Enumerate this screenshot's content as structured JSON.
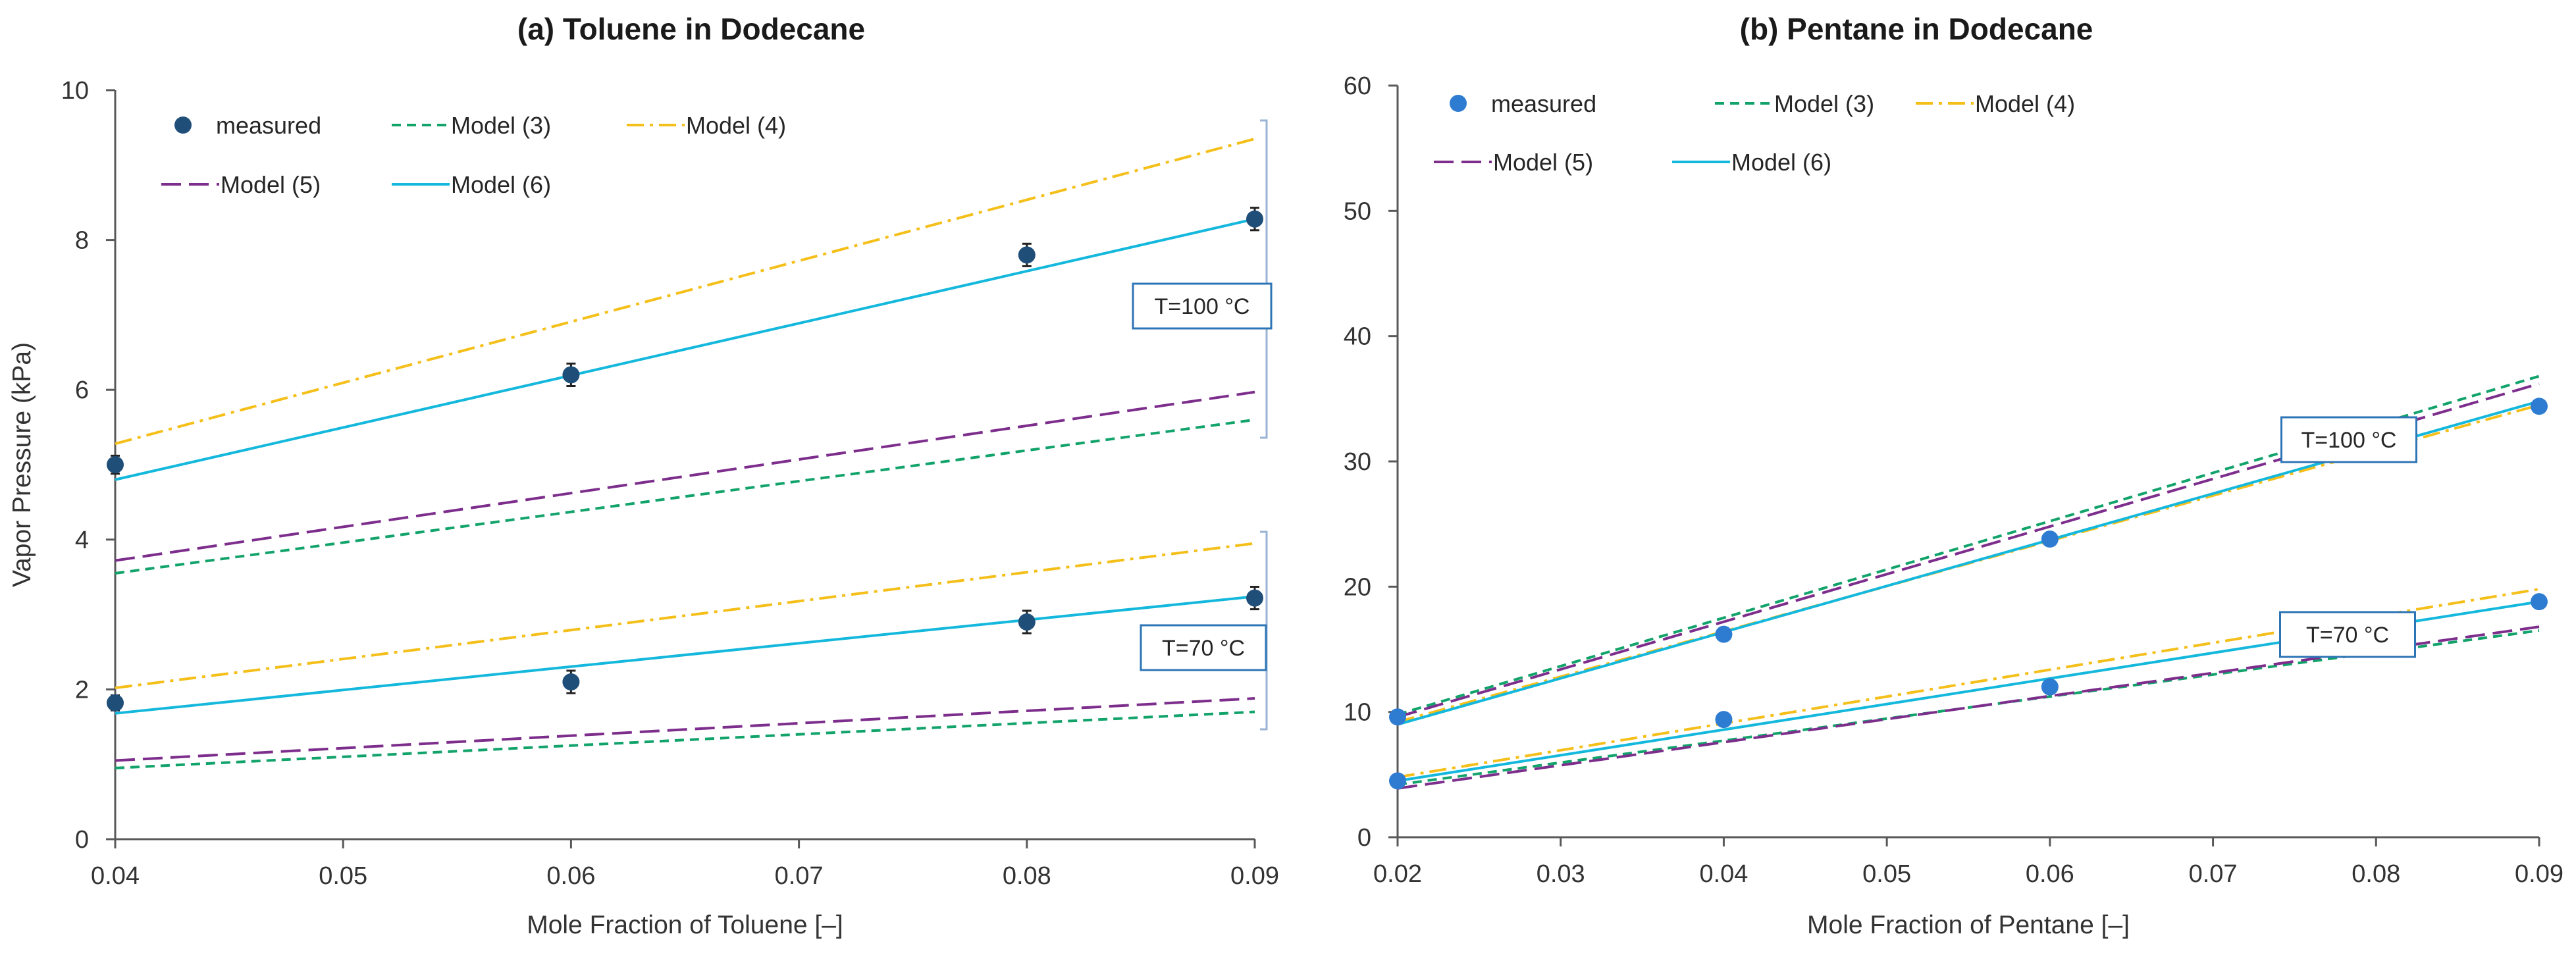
{
  "chart_data": [
    {
      "type": "line",
      "title": "(a) Toluene in Dodecane",
      "xlabel": "Mole Fraction of Toluene [–]",
      "ylabel": "Vapor Pressure (kPa)",
      "xlim": [
        0.04,
        0.09
      ],
      "ylim": [
        0,
        10
      ],
      "xticks": [
        "0.04",
        "0.05",
        "0.06",
        "0.07",
        "0.08",
        "0.09"
      ],
      "yticks": [
        "0",
        "2",
        "4",
        "6",
        "8",
        "10"
      ],
      "grid": false,
      "legend_position": "top-left, inside plot",
      "legend": [
        "measured",
        "Model (3)",
        "Model (4)",
        "Model (5)",
        "Model (6)"
      ],
      "annotations": [
        "T=100 °C",
        "T=70 °C"
      ],
      "measured": [
        {
          "temp": "T=100 °C",
          "x": [
            0.04,
            0.06,
            0.08,
            0.09
          ],
          "y": [
            5.0,
            6.2,
            7.8,
            8.28
          ],
          "err": [
            0.12,
            0.15,
            0.15,
            0.15
          ]
        },
        {
          "temp": "T=70 °C",
          "x": [
            0.04,
            0.06,
            0.08,
            0.09
          ],
          "y": [
            1.82,
            2.1,
            2.9,
            3.22
          ],
          "err": [
            0.1,
            0.15,
            0.15,
            0.15
          ]
        }
      ],
      "series": [
        {
          "name": "Model (3)",
          "temp": "T=100 °C",
          "x": [
            0.04,
            0.09
          ],
          "y": [
            3.55,
            5.6
          ]
        },
        {
          "name": "Model (4)",
          "temp": "T=100 °C",
          "x": [
            0.04,
            0.09
          ],
          "y": [
            5.28,
            9.35
          ]
        },
        {
          "name": "Model (5)",
          "temp": "T=100 °C",
          "x": [
            0.04,
            0.09
          ],
          "y": [
            3.72,
            5.97
          ]
        },
        {
          "name": "Model (6)",
          "temp": "T=100 °C",
          "x": [
            0.04,
            0.09
          ],
          "y": [
            4.8,
            8.28
          ]
        },
        {
          "name": "Model (3)",
          "temp": "T=70 °C",
          "x": [
            0.04,
            0.09
          ],
          "y": [
            0.95,
            1.7
          ]
        },
        {
          "name": "Model (4)",
          "temp": "T=70 °C",
          "x": [
            0.04,
            0.09
          ],
          "y": [
            2.02,
            3.95
          ]
        },
        {
          "name": "Model (5)",
          "temp": "T=70 °C",
          "x": [
            0.04,
            0.09
          ],
          "y": [
            1.05,
            1.88
          ]
        },
        {
          "name": "Model (6)",
          "temp": "T=70 °C",
          "x": [
            0.04,
            0.09
          ],
          "y": [
            1.68,
            3.24
          ]
        }
      ]
    },
    {
      "type": "line",
      "title": "(b) Pentane in Dodecane",
      "xlabel": "Mole Fraction of Pentane [–]",
      "ylabel": "",
      "xlim": [
        0.02,
        0.09
      ],
      "ylim": [
        0,
        60
      ],
      "xticks": [
        "0.02",
        "0.03",
        "0.04",
        "0.05",
        "0.06",
        "0.07",
        "0.08",
        "0.09"
      ],
      "yticks": [
        "0",
        "10",
        "20",
        "30",
        "40",
        "50",
        "60"
      ],
      "grid": false,
      "legend_position": "top-left, inside plot",
      "legend": [
        "measured",
        "Model (3)",
        "Model (4)",
        "Model (5)",
        "Model (6)"
      ],
      "annotations": [
        "T=100 °C",
        "T=70 °C"
      ],
      "measured": [
        {
          "temp": "T=100 °C",
          "x": [
            0.02,
            0.04,
            0.06,
            0.09
          ],
          "y": [
            9.6,
            16.2,
            23.8,
            34.4
          ]
        },
        {
          "temp": "T=70 °C",
          "x": [
            0.02,
            0.04,
            0.06,
            0.09
          ],
          "y": [
            4.5,
            9.4,
            12.0,
            18.8
          ]
        }
      ],
      "series": [
        {
          "name": "Model (3)",
          "temp": "T=100 °C",
          "x": [
            0.02,
            0.09
          ],
          "y": [
            9.8,
            36.8
          ]
        },
        {
          "name": "Model (4)",
          "temp": "T=100 °C",
          "x": [
            0.02,
            0.09
          ],
          "y": [
            9.2,
            34.5
          ]
        },
        {
          "name": "Model (5)",
          "temp": "T=100 °C",
          "x": [
            0.02,
            0.09
          ],
          "y": [
            9.6,
            36.2
          ]
        },
        {
          "name": "Model (6)",
          "temp": "T=100 °C",
          "x": [
            0.02,
            0.09
          ],
          "y": [
            9.0,
            34.8
          ]
        },
        {
          "name": "Model (3)",
          "temp": "T=70 °C",
          "x": [
            0.02,
            0.09
          ],
          "y": [
            4.2,
            16.5
          ]
        },
        {
          "name": "Model (4)",
          "temp": "T=70 °C",
          "x": [
            0.02,
            0.09
          ],
          "y": [
            4.8,
            19.8
          ]
        },
        {
          "name": "Model (5)",
          "temp": "T=70 °C",
          "x": [
            0.02,
            0.09
          ],
          "y": [
            3.9,
            16.8
          ]
        },
        {
          "name": "Model (6)",
          "temp": "T=70 °C",
          "x": [
            0.02,
            0.09
          ],
          "y": [
            4.5,
            18.8
          ]
        }
      ]
    }
  ],
  "styles": {
    "measured_a": "#1f4e79",
    "measured_b": "#2e7cd1",
    "Model (3)": "#12a36b",
    "Model (4)": "#f5bf1a",
    "Model (5)": "#7d2e8c",
    "Model (6)": "#14b8dc",
    "axis": "#595959",
    "bracket": "#9ab3d5",
    "box_border": "#2e75b6"
  }
}
